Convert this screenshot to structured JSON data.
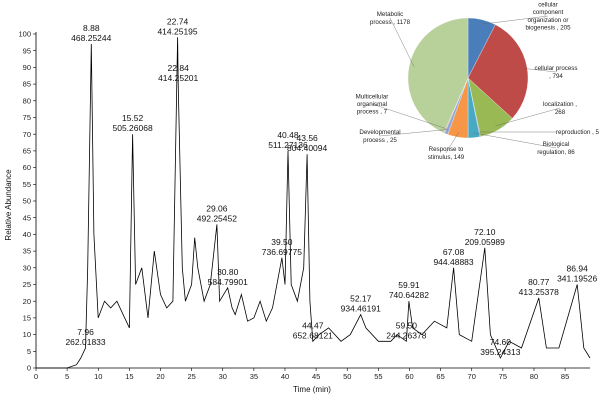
{
  "chart_data": [
    {
      "type": "line",
      "xlabel": "Time (min)",
      "ylabel": "Relative Abundance",
      "xlim": [
        0,
        89
      ],
      "ylim": [
        0,
        100
      ],
      "x_ticks": [
        0,
        5,
        10,
        15,
        20,
        25,
        30,
        35,
        40,
        45,
        50,
        55,
        60,
        65,
        70,
        75,
        80,
        85
      ],
      "y_ticks": [
        0,
        5,
        10,
        15,
        20,
        25,
        30,
        35,
        40,
        45,
        50,
        55,
        60,
        65,
        70,
        75,
        80,
        85,
        90,
        95,
        100
      ],
      "grid": false,
      "series": [
        {
          "x": [
            0,
            5,
            6.5,
            7.2,
            7.96,
            8.3,
            8.88,
            9.3,
            10,
            11,
            12,
            13,
            14,
            15,
            15.52,
            16,
            17,
            18,
            19,
            20,
            21,
            22,
            22.74,
            22.84,
            23.5,
            24,
            25,
            25.5,
            26,
            27,
            28,
            29.06,
            29.5,
            30.8,
            31.5,
            32,
            33,
            34,
            35,
            36,
            37,
            38,
            39.5,
            40,
            40.48,
            41,
            42,
            43.0,
            43.56,
            44,
            44.47,
            45.5,
            47,
            49,
            50.5,
            52.17,
            53,
            55,
            57,
            58,
            59.5,
            59.91,
            60.5,
            62,
            64,
            66,
            67.08,
            68,
            70,
            72.1,
            73,
            74.6,
            76,
            78,
            80.77,
            82,
            84,
            86.94,
            88,
            89
          ],
          "y": [
            0,
            0,
            1,
            3,
            6,
            30,
            97,
            40,
            15,
            20,
            18,
            20,
            16,
            12,
            70,
            25,
            30,
            15,
            35,
            22,
            18,
            20,
            99,
            85,
            30,
            20,
            25,
            39,
            30,
            20,
            25,
            43,
            20,
            24,
            18,
            16,
            22,
            14,
            15,
            20,
            14,
            18,
            33,
            25,
            65,
            25,
            20,
            30,
            64,
            20,
            8,
            10,
            12,
            8,
            10,
            16,
            12,
            8,
            8,
            10,
            8,
            20,
            12,
            10,
            14,
            12,
            30,
            10,
            8,
            36,
            10,
            3,
            8,
            6,
            21,
            6,
            6,
            25,
            6,
            3
          ]
        }
      ],
      "peak_labels": [
        {
          "rt": "7.96",
          "mz": "262.01833",
          "x": 7.96,
          "y": 6
        },
        {
          "rt": "8.88",
          "mz": "468.25244",
          "x": 8.88,
          "y": 97
        },
        {
          "rt": "15.52",
          "mz": "505.26068",
          "x": 15.52,
          "y": 70
        },
        {
          "rt": "22.74",
          "mz": "414.25195",
          "x": 22.74,
          "y": 99
        },
        {
          "rt": "22.84",
          "mz": "414.25201",
          "x": 22.84,
          "y": 85
        },
        {
          "rt": "29.06",
          "mz": "492.25452",
          "x": 29.06,
          "y": 43
        },
        {
          "rt": "30.80",
          "mz": "584.79901",
          "x": 30.8,
          "y": 24
        },
        {
          "rt": "39.50",
          "mz": "736.69775",
          "x": 39.5,
          "y": 33
        },
        {
          "rt": "40.48",
          "mz": "511.27136",
          "x": 40.48,
          "y": 65
        },
        {
          "rt": "43.56",
          "mz": "804.40094",
          "x": 43.56,
          "y": 64
        },
        {
          "rt": "44.47",
          "mz": "652.68121",
          "x": 44.47,
          "y": 8
        },
        {
          "rt": "52.17",
          "mz": "934.46191",
          "x": 52.17,
          "y": 16
        },
        {
          "rt": "59.50",
          "mz": "244.26378",
          "x": 59.5,
          "y": 8
        },
        {
          "rt": "59.91",
          "mz": "740.64282",
          "x": 59.91,
          "y": 20
        },
        {
          "rt": "67.08",
          "mz": "944.48883",
          "x": 67.08,
          "y": 30
        },
        {
          "rt": "72.10",
          "mz": "209.05989",
          "x": 72.1,
          "y": 36
        },
        {
          "rt": "74.60",
          "mz": "395.24313",
          "x": 74.6,
          "y": 3
        },
        {
          "rt": "80.77",
          "mz": "413.25378",
          "x": 80.77,
          "y": 21
        },
        {
          "rt": "86.94",
          "mz": "341.19526",
          "x": 86.94,
          "y": 25
        }
      ],
      "line_color": "#000000"
    },
    {
      "type": "pie",
      "slices": [
        {
          "label_lines": [
            "cellular",
            "component",
            "organization or",
            "biogenesis , 205"
          ],
          "value": 205,
          "color": "#4a7ebb"
        },
        {
          "label_lines": [
            "cellular process",
            ", 794"
          ],
          "value": 794,
          "color": "#be4b48"
        },
        {
          "label_lines": [
            "localization ,",
            "268"
          ],
          "value": 268,
          "color": "#98b954"
        },
        {
          "label_lines": [
            "reproduction , 5"
          ],
          "value": 5,
          "color": "#7d60a0"
        },
        {
          "label_lines": [
            "Biological",
            "regulation, 86"
          ],
          "value": 86,
          "color": "#46aac5"
        },
        {
          "label_lines": [
            "Response to",
            "stimulus, 149"
          ],
          "value": 149,
          "color": "#f79646"
        },
        {
          "label_lines": [
            "Developmental",
            "process , 25"
          ],
          "value": 25,
          "color": "#8fa7d7"
        },
        {
          "label_lines": [
            "Multicellular",
            "organismal",
            "process , 7"
          ],
          "value": 7,
          "color": "#d79b9a"
        },
        {
          "label_lines": [
            "Metabolic",
            "process , 1178"
          ],
          "value": 1178,
          "color": "#b8d09a"
        }
      ]
    }
  ]
}
